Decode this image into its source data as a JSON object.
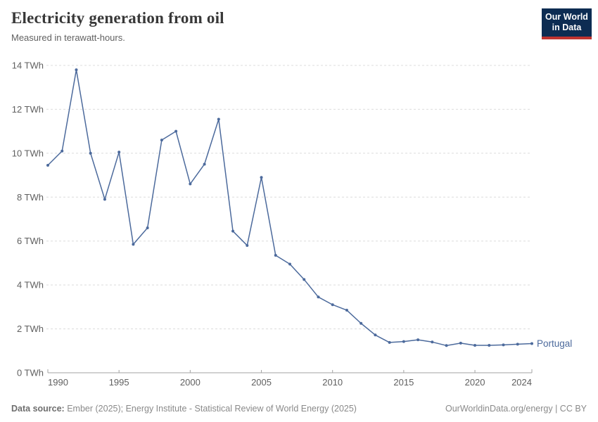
{
  "chart_data": {
    "type": "line",
    "title": "Electricity generation from oil",
    "subtitle": "Measured in terawatt-hours.",
    "unit": "TWh",
    "x": [
      1990,
      1991,
      1992,
      1993,
      1994,
      1995,
      1996,
      1997,
      1998,
      1999,
      2000,
      2001,
      2002,
      2003,
      2004,
      2005,
      2006,
      2007,
      2008,
      2009,
      2010,
      2011,
      2012,
      2013,
      2014,
      2015,
      2016,
      2017,
      2018,
      2019,
      2020,
      2021,
      2022,
      2023,
      2024
    ],
    "series": [
      {
        "name": "Portugal",
        "color": "#4c6a9c",
        "values": [
          9.45,
          10.1,
          13.8,
          10.0,
          7.9,
          10.05,
          5.85,
          6.6,
          10.6,
          11.0,
          8.6,
          9.5,
          11.55,
          6.45,
          5.8,
          8.9,
          5.35,
          4.95,
          4.25,
          3.45,
          3.1,
          2.85,
          2.25,
          1.72,
          1.38,
          1.42,
          1.5,
          1.4,
          1.24,
          1.35,
          1.25,
          1.25,
          1.27,
          1.3,
          1.33
        ]
      }
    ],
    "xlim": [
      1990,
      2024
    ],
    "ylim": [
      0,
      14
    ],
    "xticks": [
      1990,
      1995,
      2000,
      2005,
      2010,
      2015,
      2020,
      2024
    ],
    "yticks": [
      0,
      2,
      4,
      6,
      8,
      10,
      12,
      14
    ],
    "ytick_format": "{v} TWh",
    "grid": "horizontal-dashed",
    "legend_position": "end-of-line-label",
    "axis_color": "#a3a3a3",
    "grid_color": "#dcdcdc",
    "tick_label_color": "#606060"
  },
  "logo": {
    "line1": "Our World",
    "line2": "in Data",
    "bg_color": "#0d2c52",
    "accent_color": "#bf3430"
  },
  "footer": {
    "source_label": "Data source:",
    "source_text": " Ember (2025); Energy Institute - Statistical Review of World Energy (2025)",
    "right_text": "OurWorldinData.org/energy | CC BY"
  }
}
